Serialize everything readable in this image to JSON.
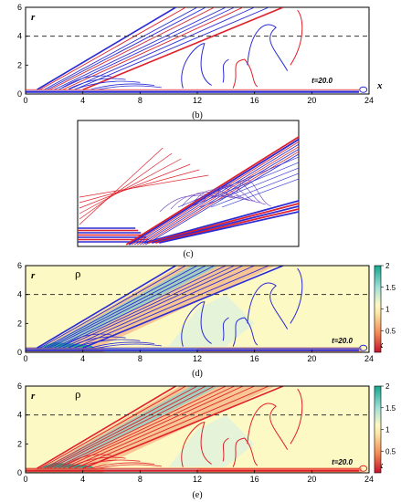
{
  "colors": {
    "blue": "#2b2bd6",
    "red": "#e0202a",
    "purple": "#6b3fb8",
    "background": "#fdf9c4",
    "dashed": "#333333"
  },
  "chart_data": [
    {
      "type": "line",
      "panel": "(b)",
      "xlabel": "x",
      "ylabel": "r",
      "xlim": [
        0,
        24
      ],
      "ylim": [
        0,
        6
      ],
      "xticks": [
        "0",
        "4",
        "8",
        "12",
        "16",
        "20",
        "24"
      ],
      "yticks": [
        "0",
        "2",
        "4",
        "6"
      ],
      "annotation": "t=20.0",
      "dashed_line_r": 4
    },
    {
      "type": "line",
      "panel": "(c)"
    },
    {
      "type": "heatmap",
      "panel": "(d)",
      "variable": "ρ",
      "xlabel": "x",
      "ylabel": "r",
      "xlim": [
        0,
        24
      ],
      "ylim": [
        0,
        6
      ],
      "xticks": [
        "0",
        "4",
        "8",
        "12",
        "16",
        "20",
        "24"
      ],
      "yticks": [
        "0",
        "2",
        "4",
        "6"
      ],
      "annotation": "t=20.0",
      "colorbar_ticks": [
        "2",
        "1.5",
        "1",
        "0.5"
      ],
      "dashed_line_r": 4,
      "contour_color": "blue"
    },
    {
      "type": "heatmap",
      "panel": "(e)",
      "variable": "ρ",
      "xlabel": "x",
      "ylabel": "r",
      "xlim": [
        0,
        24
      ],
      "ylim": [
        0,
        6
      ],
      "xticks": [
        "0",
        "4",
        "8",
        "12",
        "16",
        "20",
        "24"
      ],
      "yticks": [
        "0",
        "2",
        "4",
        "6"
      ],
      "annotation": "t=20.0",
      "colorbar_ticks": [
        "2",
        "1.5",
        "1",
        "0.5"
      ],
      "dashed_line_r": 4,
      "contour_color": "red"
    }
  ]
}
